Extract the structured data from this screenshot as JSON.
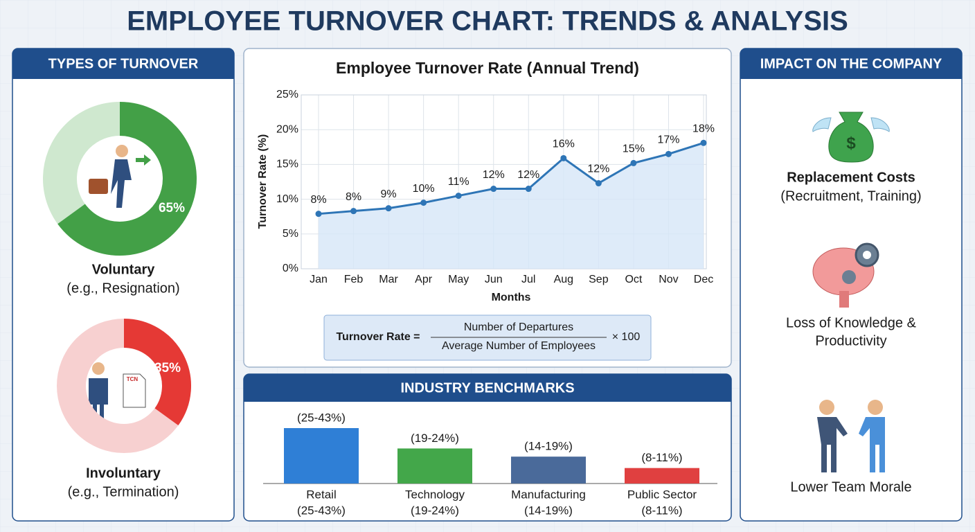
{
  "title": "EMPLOYEE TURNOVER CHART: TRENDS & ANALYSIS",
  "chart_data": [
    {
      "type": "donut",
      "title": "TYPES OF TURNOVER",
      "categories": [
        "Voluntary",
        "Involuntary"
      ],
      "notes": [
        "(e.g., Resignation)",
        "(e.g., Termination)"
      ],
      "values": [
        65,
        35
      ],
      "value_labels": [
        "65%",
        "35%"
      ],
      "colors": [
        "#43a047",
        "#e53935"
      ],
      "track_colors": [
        "#cfe8cf",
        "#f7d0d0"
      ]
    },
    {
      "type": "line",
      "title": "Employee Turnover Rate (Annual Trend)",
      "xlabel": "Months",
      "ylabel": "Turnover Rate (%)",
      "categories": [
        "Jan",
        "Feb",
        "Mar",
        "Apr",
        "May",
        "Jun",
        "Jul",
        "Aug",
        "Sep",
        "Oct",
        "Nov",
        "Dec"
      ],
      "values": [
        7.9,
        8.3,
        8.7,
        9.5,
        10.5,
        11.5,
        11.5,
        15.9,
        12.3,
        15.2,
        16.5,
        18.1
      ],
      "value_labels": [
        "8%",
        "8%",
        "9%",
        "10%",
        "11%",
        "12%",
        "12%",
        "16%",
        "12%",
        "15%",
        "17%",
        "18%"
      ],
      "ylim": [
        0,
        25
      ],
      "yticks": [
        {
          "value": 0,
          "label": "0%"
        },
        {
          "value": 5,
          "label": "5%"
        },
        {
          "value": 10,
          "label": "10%"
        },
        {
          "value": 15,
          "label": "15%"
        },
        {
          "value": 20,
          "label": "20%"
        },
        {
          "value": 25,
          "label": "25%"
        }
      ],
      "grid": true,
      "color": "#2e75b6",
      "area_color": "#d6e6f7"
    },
    {
      "type": "bar",
      "title": "INDUSTRY BENCHMARKS",
      "categories": [
        "Retail",
        "Technology",
        "Manufacturing",
        "Public Sector"
      ],
      "values": [
        34,
        21.5,
        16.5,
        9.5
      ],
      "value_labels": [
        "(25-43%)",
        "(19-24%)",
        "(14-19%)",
        "(8-11%)"
      ],
      "colors": [
        "#2f7fd6",
        "#43a74a",
        "#4a6a9a",
        "#e04040"
      ]
    }
  ],
  "formula": {
    "lhs": "Turnover Rate =",
    "numerator": "Number of Departures",
    "denominator": "Average Number of Employees",
    "factor": "× 100"
  },
  "impact": {
    "title": "IMPACT ON THE COMPANY",
    "items": [
      {
        "lines": [
          "Replacement Costs"
        ],
        "detail": "(Recruitment, Training)"
      },
      {
        "lines": [
          "Loss of Knowledge &",
          "Productivity"
        ]
      },
      {
        "lines": [
          "Lower Team Morale"
        ]
      }
    ]
  }
}
